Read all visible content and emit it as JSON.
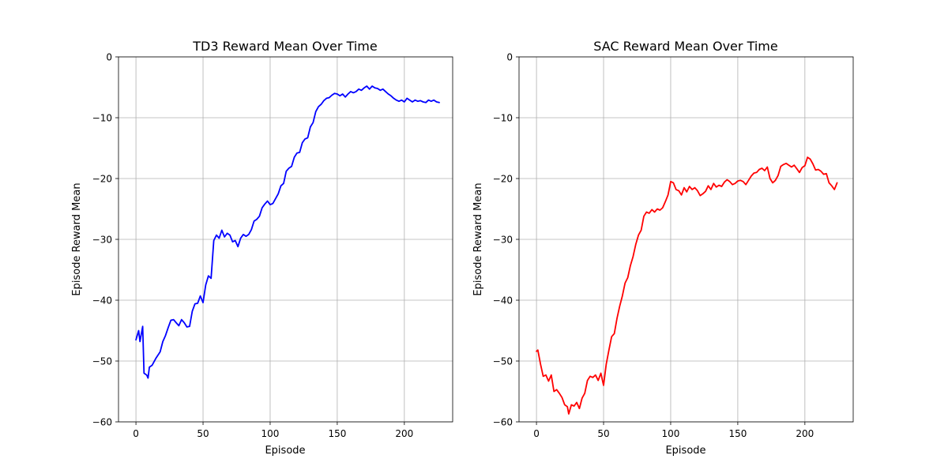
{
  "chart_data": [
    {
      "type": "line",
      "title": "TD3 Reward Mean Over Time",
      "xlabel": "Episode",
      "ylabel": "Episode Reward Mean",
      "xlim": [
        -13,
        236
      ],
      "ylim": [
        -60,
        0
      ],
      "xticks": [
        0,
        50,
        100,
        150,
        200
      ],
      "yticks": [
        0,
        -10,
        -20,
        -30,
        -40,
        -50,
        -60
      ],
      "xtick_labels": [
        "0",
        "50",
        "100",
        "150",
        "200"
      ],
      "ytick_labels": [
        "0",
        "−10",
        "−20",
        "−30",
        "−40",
        "−50",
        "−60"
      ],
      "grid": true,
      "series": [
        {
          "color": "#0000ff",
          "x": [
            0,
            2,
            3,
            5,
            6,
            8,
            9,
            10,
            12,
            15,
            18,
            20,
            22,
            24,
            26,
            28,
            30,
            32,
            34,
            36,
            38,
            40,
            42,
            44,
            46,
            48,
            50,
            52,
            54,
            56,
            58,
            60,
            62,
            64,
            66,
            68,
            70,
            72,
            74,
            76,
            78,
            80,
            82,
            84,
            86,
            88,
            90,
            92,
            94,
            96,
            98,
            100,
            102,
            104,
            106,
            108,
            110,
            112,
            114,
            116,
            118,
            120,
            122,
            124,
            126,
            128,
            130,
            132,
            134,
            136,
            138,
            140,
            142,
            144,
            146,
            148,
            150,
            152,
            154,
            156,
            158,
            160,
            162,
            164,
            166,
            168,
            170,
            172,
            174,
            176,
            178,
            180,
            182,
            184,
            186,
            188,
            190,
            192,
            194,
            196,
            198,
            200,
            202,
            204,
            206,
            208,
            210,
            212,
            214,
            216,
            218,
            220,
            222,
            224,
            226
          ],
          "y": [
            -46.5,
            -45,
            -46.8,
            -44.3,
            -52,
            -52.3,
            -52.8,
            -51,
            -50.7,
            -49.5,
            -48.5,
            -46.8,
            -45.8,
            -44.5,
            -43.3,
            -43.2,
            -43.7,
            -44.2,
            -43.2,
            -43.7,
            -44.4,
            -44.3,
            -41.8,
            -40.6,
            -40.5,
            -39.3,
            -40.4,
            -37.5,
            -36,
            -36.4,
            -30.2,
            -29.3,
            -29.8,
            -28.5,
            -29.6,
            -29,
            -29.3,
            -30.4,
            -30.2,
            -31.2,
            -29.8,
            -29.2,
            -29.5,
            -29.2,
            -28.4,
            -27,
            -26.7,
            -26.2,
            -24.8,
            -24.2,
            -23.7,
            -24.3,
            -24.1,
            -23.3,
            -22.5,
            -21.2,
            -20.8,
            -18.8,
            -18.3,
            -18,
            -16.5,
            -15.8,
            -15.7,
            -14.1,
            -13.5,
            -13.3,
            -11.5,
            -10.8,
            -9,
            -8.2,
            -7.8,
            -7.2,
            -6.8,
            -6.7,
            -6.3,
            -6,
            -6.1,
            -6.4,
            -6.1,
            -6.6,
            -6.1,
            -5.7,
            -5.9,
            -5.7,
            -5.3,
            -5.5,
            -5.1,
            -4.8,
            -5.3,
            -4.8,
            -5.1,
            -5.2,
            -5.5,
            -5.3,
            -5.7,
            -6.1,
            -6.4,
            -6.8,
            -7.1,
            -7.3,
            -7.1,
            -7.4,
            -6.8,
            -7.1,
            -7.4,
            -7.1,
            -7.3,
            -7.2,
            -7.4,
            -7.5,
            -7.1,
            -7.3,
            -7.1,
            -7.4,
            -7.5
          ]
        }
      ]
    },
    {
      "type": "line",
      "title": "SAC Reward Mean Over Time",
      "xlabel": "Episode",
      "ylabel": "Episode Reward Mean",
      "xlim": [
        -13,
        236
      ],
      "ylim": [
        -60,
        0
      ],
      "xticks": [
        0,
        50,
        100,
        150,
        200
      ],
      "yticks": [
        0,
        -10,
        -20,
        -30,
        -40,
        -50,
        -60
      ],
      "xtick_labels": [
        "0",
        "50",
        "100",
        "150",
        "200"
      ],
      "ytick_labels": [
        "0",
        "−10",
        "−20",
        "−30",
        "−40",
        "−50",
        "−60"
      ],
      "grid": true,
      "series": [
        {
          "color": "#ff0000",
          "x": [
            0,
            1,
            3,
            5,
            7,
            9,
            11,
            13,
            15,
            17,
            19,
            21,
            23,
            24,
            26,
            28,
            30,
            32,
            34,
            36,
            38,
            40,
            42,
            44,
            46,
            48,
            50,
            52,
            54,
            56,
            58,
            60,
            62,
            64,
            66,
            68,
            70,
            72,
            74,
            76,
            78,
            80,
            82,
            84,
            86,
            88,
            90,
            92,
            94,
            96,
            98,
            100,
            102,
            104,
            106,
            108,
            110,
            112,
            114,
            116,
            118,
            120,
            122,
            124,
            126,
            128,
            130,
            132,
            134,
            136,
            138,
            140,
            142,
            144,
            146,
            148,
            150,
            152,
            154,
            156,
            158,
            160,
            162,
            164,
            166,
            168,
            170,
            172,
            174,
            176,
            178,
            180,
            182,
            184,
            186,
            188,
            190,
            192,
            194,
            196,
            198,
            200,
            202,
            204,
            206,
            208,
            210,
            212,
            214,
            216,
            218,
            220,
            222,
            224
          ],
          "y": [
            -48.4,
            -48.2,
            -50.5,
            -52.5,
            -52.3,
            -53.3,
            -52.3,
            -55,
            -54.7,
            -55.3,
            -56,
            -57.2,
            -57.5,
            -58.7,
            -57.2,
            -57.4,
            -56.8,
            -57.8,
            -56.1,
            -55.3,
            -53.2,
            -52.5,
            -52.7,
            -52.3,
            -53.2,
            -52,
            -54,
            -50.5,
            -48.2,
            -46,
            -45.5,
            -43,
            -41,
            -39.3,
            -37.2,
            -36.3,
            -34.3,
            -32.8,
            -30.8,
            -29.3,
            -28.5,
            -26.2,
            -25.5,
            -25.7,
            -25.1,
            -25.5,
            -25,
            -25.2,
            -24.8,
            -23.8,
            -22.7,
            -20.5,
            -20.7,
            -21.8,
            -22,
            -22.7,
            -21.5,
            -22.2,
            -21.3,
            -21.8,
            -21.5,
            -22,
            -22.8,
            -22.5,
            -22.1,
            -21.2,
            -21.8,
            -20.8,
            -21.4,
            -21.1,
            -21.3,
            -20.6,
            -20.2,
            -20.5,
            -21,
            -20.8,
            -20.4,
            -20.3,
            -20.5,
            -21,
            -20.3,
            -19.6,
            -19.1,
            -19,
            -18.5,
            -18.3,
            -18.7,
            -18.1,
            -20,
            -20.7,
            -20.3,
            -19.5,
            -18,
            -17.7,
            -17.5,
            -17.8,
            -18.1,
            -17.8,
            -18.4,
            -19,
            -18.2,
            -17.9,
            -16.5,
            -16.8,
            -17.6,
            -18.6,
            -18.5,
            -18.8,
            -19.3,
            -19.2,
            -20.7,
            -21.2,
            -21.8,
            -20.7
          ]
        }
      ]
    }
  ]
}
